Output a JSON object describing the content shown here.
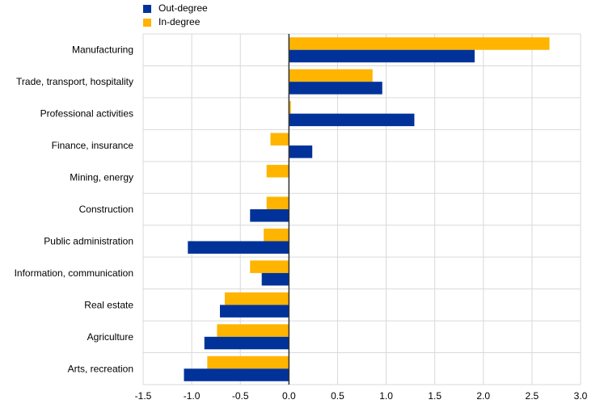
{
  "chart_data": {
    "type": "bar",
    "orientation": "horizontal",
    "categories": [
      "Manufacturing",
      "Trade, transport, hospitality",
      "Professional activities",
      "Finance, insurance",
      "Mining, energy",
      "Construction",
      "Public administration",
      "Information, communication",
      "Real estate",
      "Agriculture",
      "Arts, recreation"
    ],
    "series": [
      {
        "name": "In-degree",
        "color": "#FFB400",
        "values": [
          2.68,
          0.86,
          0.02,
          -0.19,
          -0.23,
          -0.23,
          -0.26,
          -0.4,
          -0.66,
          -0.74,
          -0.84
        ]
      },
      {
        "name": "Out-degree",
        "color": "#003299",
        "values": [
          1.91,
          0.96,
          1.29,
          0.24,
          null,
          -0.4,
          -1.04,
          -0.28,
          -0.71,
          -0.87,
          -1.08
        ]
      }
    ],
    "x_ticks": [
      "-1.5",
      "-1.0",
      "-0.5",
      "0.0",
      "0.5",
      "1.0",
      "1.5",
      "2.0",
      "2.5",
      "3.0"
    ],
    "xlim": [
      -1.5,
      3.0
    ],
    "grid": true,
    "legend_position": "top-left"
  },
  "legend": {
    "items": [
      {
        "label": "Out-degree",
        "color": "#003299"
      },
      {
        "label": "In-degree",
        "color": "#FFB400"
      }
    ]
  }
}
